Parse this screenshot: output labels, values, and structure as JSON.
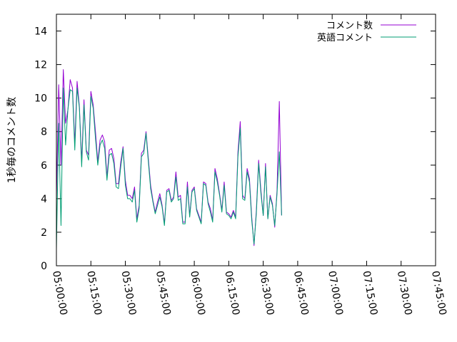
{
  "chart_data": {
    "type": "line",
    "title": "",
    "xlabel": "",
    "ylabel": "1秒毎のコメント数",
    "ylim": [
      0,
      15
    ],
    "yticks": [
      0,
      2,
      4,
      6,
      8,
      10,
      12,
      14
    ],
    "xlim": [
      "05:00:00",
      "07:45:00"
    ],
    "xticks": [
      "05:00:00",
      "05:15:00",
      "05:30:00",
      "05:45:00",
      "06:00:00",
      "06:15:00",
      "06:30:00",
      "06:45:00",
      "07:00:00",
      "07:15:00",
      "07:30:00",
      "07:45:00"
    ],
    "grid": false,
    "legend_position": "top-right",
    "series": [
      {
        "name": "コメント数",
        "color": "#9400d3",
        "points": [
          [
            "05:00:00",
            4.0
          ],
          [
            "05:01:00",
            10.8
          ],
          [
            "05:02:00",
            6.0
          ],
          [
            "05:03:00",
            11.7
          ],
          [
            "05:04:00",
            8.5
          ],
          [
            "05:05:00",
            9.3
          ],
          [
            "05:06:00",
            11.1
          ],
          [
            "05:07:00",
            10.6
          ],
          [
            "05:08:00",
            7.3
          ],
          [
            "05:09:00",
            11.0
          ],
          [
            "05:10:00",
            9.5
          ],
          [
            "05:11:00",
            6.2
          ],
          [
            "05:12:00",
            9.9
          ],
          [
            "05:13:00",
            6.9
          ],
          [
            "05:14:00",
            6.6
          ],
          [
            "05:15:00",
            10.4
          ],
          [
            "05:16:00",
            9.6
          ],
          [
            "05:17:00",
            8.0
          ],
          [
            "05:18:00",
            6.2
          ],
          [
            "05:19:00",
            7.5
          ],
          [
            "05:20:00",
            7.8
          ],
          [
            "05:21:00",
            7.4
          ],
          [
            "05:22:00",
            5.3
          ],
          [
            "05:23:00",
            6.9
          ],
          [
            "05:24:00",
            7.0
          ],
          [
            "05:25:00",
            6.4
          ],
          [
            "05:26:00",
            4.9
          ],
          [
            "05:27:00",
            4.9
          ],
          [
            "05:28:00",
            6.2
          ],
          [
            "05:29:00",
            7.1
          ],
          [
            "05:30:00",
            5.1
          ],
          [
            "05:31:00",
            4.2
          ],
          [
            "05:32:00",
            4.2
          ],
          [
            "05:33:00",
            4.0
          ],
          [
            "05:34:00",
            4.7
          ],
          [
            "05:35:00",
            2.8
          ],
          [
            "05:36:00",
            3.6
          ],
          [
            "05:37:00",
            6.7
          ],
          [
            "05:38:00",
            6.9
          ],
          [
            "05:39:00",
            8.0
          ],
          [
            "05:40:00",
            6.4
          ],
          [
            "05:41:00",
            4.8
          ],
          [
            "05:42:00",
            3.9
          ],
          [
            "05:43:00",
            3.2
          ],
          [
            "05:44:00",
            3.8
          ],
          [
            "05:45:00",
            4.3
          ],
          [
            "05:46:00",
            3.6
          ],
          [
            "05:47:00",
            2.5
          ],
          [
            "05:48:00",
            4.5
          ],
          [
            "05:49:00",
            4.6
          ],
          [
            "05:50:00",
            3.9
          ],
          [
            "05:51:00",
            4.1
          ],
          [
            "05:52:00",
            5.6
          ],
          [
            "05:53:00",
            4.1
          ],
          [
            "05:54:00",
            4.2
          ],
          [
            "05:55:00",
            2.6
          ],
          [
            "05:56:00",
            2.6
          ],
          [
            "05:57:00",
            5.0
          ],
          [
            "05:58:00",
            3.0
          ],
          [
            "05:59:00",
            4.5
          ],
          [
            "06:00:00",
            4.7
          ],
          [
            "06:01:00",
            3.4
          ],
          [
            "06:02:00",
            3.0
          ],
          [
            "06:03:00",
            2.6
          ],
          [
            "06:04:00",
            5.0
          ],
          [
            "06:05:00",
            4.9
          ],
          [
            "06:06:00",
            3.8
          ],
          [
            "06:07:00",
            3.4
          ],
          [
            "06:08:00",
            2.7
          ],
          [
            "06:09:00",
            5.8
          ],
          [
            "06:10:00",
            5.2
          ],
          [
            "06:11:00",
            4.3
          ],
          [
            "06:12:00",
            3.3
          ],
          [
            "06:13:00",
            5.0
          ],
          [
            "06:14:00",
            3.2
          ],
          [
            "06:15:00",
            3.1
          ],
          [
            "06:16:00",
            2.9
          ],
          [
            "06:17:00",
            3.3
          ],
          [
            "06:18:00",
            2.9
          ],
          [
            "06:19:00",
            6.8
          ],
          [
            "06:20:00",
            8.6
          ],
          [
            "06:21:00",
            4.2
          ],
          [
            "06:22:00",
            4.0
          ],
          [
            "06:23:00",
            5.8
          ],
          [
            "06:24:00",
            5.2
          ],
          [
            "06:25:00",
            2.9
          ],
          [
            "06:26:00",
            1.2
          ],
          [
            "06:27:00",
            3.3
          ],
          [
            "06:28:00",
            6.3
          ],
          [
            "06:29:00",
            4.5
          ],
          [
            "06:30:00",
            3.0
          ],
          [
            "06:31:00",
            6.1
          ],
          [
            "06:32:00",
            2.8
          ],
          [
            "06:33:00",
            4.2
          ],
          [
            "06:34:00",
            3.7
          ],
          [
            "06:35:00",
            2.3
          ],
          [
            "06:36:00",
            4.5
          ],
          [
            "06:37:00",
            9.8
          ],
          [
            "06:38:00",
            3.0
          ]
        ]
      },
      {
        "name": "英語コメント",
        "color": "#009e73",
        "points": [
          [
            "05:00:00",
            1.0
          ],
          [
            "05:01:00",
            8.5
          ],
          [
            "05:02:00",
            2.4
          ],
          [
            "05:03:00",
            10.6
          ],
          [
            "05:04:00",
            7.2
          ],
          [
            "05:05:00",
            9.3
          ],
          [
            "05:06:00",
            10.5
          ],
          [
            "05:07:00",
            10.4
          ],
          [
            "05:08:00",
            6.9
          ],
          [
            "05:09:00",
            10.6
          ],
          [
            "05:10:00",
            9.4
          ],
          [
            "05:11:00",
            5.9
          ],
          [
            "05:12:00",
            9.6
          ],
          [
            "05:13:00",
            6.8
          ],
          [
            "05:14:00",
            6.3
          ],
          [
            "05:15:00",
            10.1
          ],
          [
            "05:16:00",
            9.4
          ],
          [
            "05:17:00",
            7.6
          ],
          [
            "05:18:00",
            6.0
          ],
          [
            "05:19:00",
            7.2
          ],
          [
            "05:20:00",
            7.5
          ],
          [
            "05:21:00",
            7.0
          ],
          [
            "05:22:00",
            5.1
          ],
          [
            "05:23:00",
            6.6
          ],
          [
            "05:24:00",
            6.7
          ],
          [
            "05:25:00",
            6.1
          ],
          [
            "05:26:00",
            4.7
          ],
          [
            "05:27:00",
            4.6
          ],
          [
            "05:28:00",
            5.9
          ],
          [
            "05:29:00",
            7.0
          ],
          [
            "05:30:00",
            4.8
          ],
          [
            "05:31:00",
            4.0
          ],
          [
            "05:32:00",
            4.0
          ],
          [
            "05:33:00",
            3.8
          ],
          [
            "05:34:00",
            4.5
          ],
          [
            "05:35:00",
            2.6
          ],
          [
            "05:36:00",
            3.4
          ],
          [
            "05:37:00",
            6.5
          ],
          [
            "05:38:00",
            6.7
          ],
          [
            "05:39:00",
            7.9
          ],
          [
            "05:40:00",
            6.2
          ],
          [
            "05:41:00",
            4.6
          ],
          [
            "05:42:00",
            3.8
          ],
          [
            "05:43:00",
            3.1
          ],
          [
            "05:44:00",
            3.6
          ],
          [
            "05:45:00",
            4.1
          ],
          [
            "05:46:00",
            3.5
          ],
          [
            "05:47:00",
            2.4
          ],
          [
            "05:48:00",
            4.4
          ],
          [
            "05:49:00",
            4.5
          ],
          [
            "05:50:00",
            3.8
          ],
          [
            "05:51:00",
            4.0
          ],
          [
            "05:52:00",
            5.3
          ],
          [
            "05:53:00",
            3.9
          ],
          [
            "05:54:00",
            4.0
          ],
          [
            "05:55:00",
            2.5
          ],
          [
            "05:56:00",
            2.5
          ],
          [
            "05:57:00",
            4.7
          ],
          [
            "05:58:00",
            2.9
          ],
          [
            "05:59:00",
            4.4
          ],
          [
            "06:00:00",
            4.6
          ],
          [
            "06:01:00",
            3.3
          ],
          [
            "06:02:00",
            2.9
          ],
          [
            "06:03:00",
            2.5
          ],
          [
            "06:04:00",
            4.9
          ],
          [
            "06:05:00",
            4.8
          ],
          [
            "06:06:00",
            3.7
          ],
          [
            "06:07:00",
            3.2
          ],
          [
            "06:08:00",
            2.6
          ],
          [
            "06:09:00",
            5.6
          ],
          [
            "06:10:00",
            5.0
          ],
          [
            "06:11:00",
            4.2
          ],
          [
            "06:12:00",
            3.2
          ],
          [
            "06:13:00",
            4.8
          ],
          [
            "06:14:00",
            3.1
          ],
          [
            "06:15:00",
            3.0
          ],
          [
            "06:16:00",
            2.8
          ],
          [
            "06:17:00",
            3.2
          ],
          [
            "06:18:00",
            2.8
          ],
          [
            "06:19:00",
            6.5
          ],
          [
            "06:20:00",
            8.2
          ],
          [
            "06:21:00",
            4.0
          ],
          [
            "06:22:00",
            3.9
          ],
          [
            "06:23:00",
            5.6
          ],
          [
            "06:24:00",
            5.0
          ],
          [
            "06:25:00",
            2.7
          ],
          [
            "06:26:00",
            1.3
          ],
          [
            "06:27:00",
            3.1
          ],
          [
            "06:28:00",
            6.1
          ],
          [
            "06:29:00",
            4.3
          ],
          [
            "06:30:00",
            3.0
          ],
          [
            "06:31:00",
            5.9
          ],
          [
            "06:32:00",
            2.8
          ],
          [
            "06:33:00",
            4.1
          ],
          [
            "06:34:00",
            3.6
          ],
          [
            "06:35:00",
            2.4
          ],
          [
            "06:36:00",
            4.3
          ],
          [
            "06:37:00",
            6.8
          ],
          [
            "06:38:00",
            3.0
          ]
        ]
      }
    ]
  }
}
